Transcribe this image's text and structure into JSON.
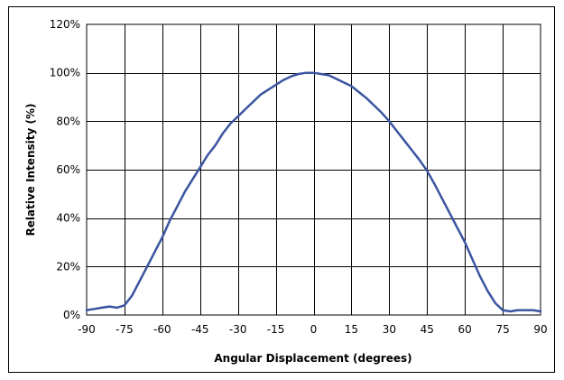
{
  "chart_data": {
    "type": "line",
    "title": "",
    "xlabel": "Angular Displacement (degrees)",
    "ylabel": "Relative Intensity (%)",
    "xlim": [
      -90,
      90
    ],
    "ylim": [
      0,
      120
    ],
    "x_ticks": [
      -90,
      -75,
      -60,
      -45,
      -30,
      -15,
      0,
      15,
      30,
      45,
      60,
      75,
      90
    ],
    "y_ticks": [
      0,
      20,
      40,
      60,
      80,
      100,
      120
    ],
    "x_tick_labels": [
      "-90",
      "-75",
      "-60",
      "-45",
      "-30",
      "-15",
      "0",
      "15",
      "30",
      "45",
      "60",
      "75",
      "90"
    ],
    "y_tick_labels": [
      "0%",
      "20%",
      "40%",
      "60%",
      "80%",
      "100%",
      "120%"
    ],
    "grid": true,
    "legend": "none",
    "series": [
      {
        "color": "#3a55a0",
        "x": [
          -90,
          -87,
          -84,
          -81,
          -78,
          -75,
          -72,
          -69,
          -66,
          -63,
          -60,
          -57,
          -54,
          -51,
          -48,
          -45,
          -42,
          -39,
          -36,
          -33,
          -30,
          -27,
          -24,
          -21,
          -18,
          -15,
          -12,
          -9,
          -6,
          -3,
          0,
          3,
          6,
          9,
          12,
          15,
          18,
          21,
          24,
          27,
          30,
          33,
          36,
          39,
          42,
          45,
          48,
          51,
          54,
          57,
          60,
          63,
          66,
          69,
          72,
          75,
          78,
          81,
          84,
          87,
          90
        ],
        "y": [
          2,
          2.5,
          3,
          3.5,
          3,
          4,
          8,
          14,
          20,
          26,
          32,
          39,
          45,
          51,
          56,
          61,
          66,
          70,
          75,
          79,
          82,
          85,
          88,
          91,
          93,
          95,
          97,
          98.5,
          99.5,
          100,
          100,
          99.5,
          99,
          97.5,
          96,
          94.5,
          92,
          89.5,
          86.5,
          83.5,
          80,
          76,
          72,
          68,
          64,
          59.5,
          54,
          48,
          42,
          36,
          30,
          23,
          16,
          10,
          5,
          2,
          1.5,
          2,
          2,
          2,
          1.5
        ]
      }
    ]
  }
}
